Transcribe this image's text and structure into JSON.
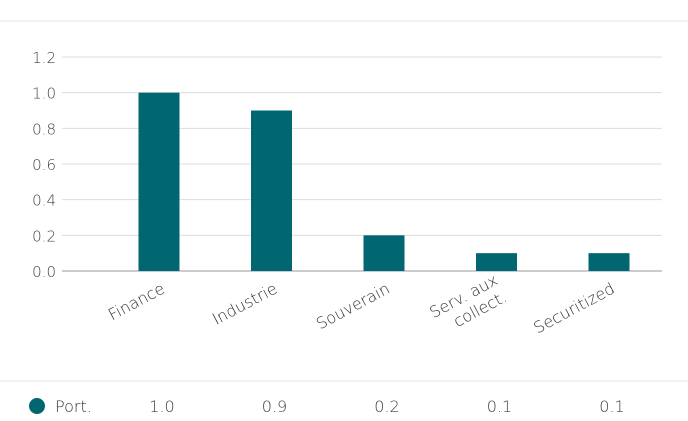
{
  "chart_data": {
    "type": "bar",
    "categories": [
      "Finance",
      "Industrie",
      "Souverain",
      "Serv. aux collect.",
      "Securitized"
    ],
    "category_lines": [
      [
        "Finance"
      ],
      [
        "Industrie"
      ],
      [
        "Souverain"
      ],
      [
        "Serv. aux",
        "collect."
      ],
      [
        "Securitized"
      ]
    ],
    "series": [
      {
        "name": "Port.",
        "values": [
          1.0,
          0.9,
          0.2,
          0.1,
          0.1
        ],
        "color": "#00666f"
      }
    ],
    "value_labels": [
      "1.0",
      "0.9",
      "0.2",
      "0.1",
      "0.1"
    ],
    "yticks": [
      "0.0",
      "0.2",
      "0.4",
      "0.6",
      "0.8",
      "1.0",
      "1.2"
    ],
    "ylim": [
      0,
      1.2
    ],
    "grid": true,
    "legend": "bottom-table",
    "title": "",
    "xlabel": "",
    "ylabel": ""
  },
  "colors": {
    "bar": "#00666f",
    "grid": "#dddddd",
    "axis": "#999999",
    "legend_marker": "#00666f"
  }
}
